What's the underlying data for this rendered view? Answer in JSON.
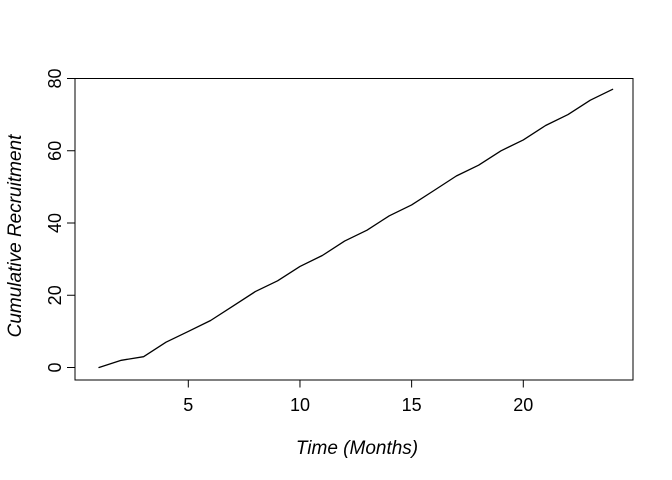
{
  "chart_data": {
    "type": "line",
    "title": "",
    "xlabel": "Time (Months)",
    "ylabel": "Cumulative Recruitment",
    "x": [
      1,
      2,
      3,
      4,
      5,
      6,
      7,
      8,
      9,
      10,
      11,
      12,
      13,
      14,
      15,
      16,
      17,
      18,
      19,
      20,
      21,
      22,
      23,
      24
    ],
    "values": [
      0,
      2,
      3,
      7,
      10,
      13,
      17,
      21,
      24,
      28,
      31,
      35,
      38,
      42,
      45,
      49,
      53,
      56,
      60,
      63,
      67,
      70,
      74,
      77
    ],
    "series_name": "Cumulative Recruitment",
    "x_ticks": [
      5,
      10,
      15,
      20
    ],
    "y_ticks": [
      0,
      20,
      40,
      60,
      80
    ],
    "xlim": [
      0.1,
      24.9
    ],
    "ylim": [
      0,
      80
    ],
    "grid": false,
    "legend": "none",
    "marker": "none",
    "line_color": "#000000",
    "axis_color": "#000000",
    "background_color": "#ffffff"
  }
}
